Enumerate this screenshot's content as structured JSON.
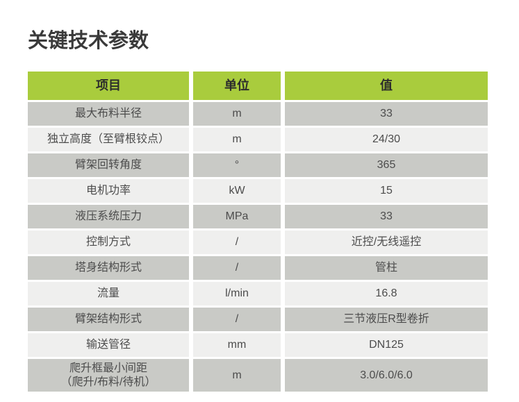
{
  "page": {
    "title": "关键技术参数"
  },
  "colors": {
    "header_bg": "#a9cc3d",
    "row_dark": "#c9cac6",
    "row_light": "#efefee",
    "title_text": "#3a3a3a",
    "cell_text": "#4c4c4c"
  },
  "table": {
    "headers": [
      "项目",
      "单位",
      "值"
    ],
    "rows": [
      {
        "item": "最大布料半径",
        "unit": "m",
        "value": "33"
      },
      {
        "item": "独立高度（至臂根铰点）",
        "unit": "m",
        "value": "24/30"
      },
      {
        "item": "臂架回转角度",
        "unit": "°",
        "value": "365"
      },
      {
        "item": "电机功率",
        "unit": "kW",
        "value": "15"
      },
      {
        "item": "液压系统压力",
        "unit": "MPa",
        "value": "33"
      },
      {
        "item": "控制方式",
        "unit": "/",
        "value": "近控/无线遥控"
      },
      {
        "item": "塔身结构形式",
        "unit": "/",
        "value": "管柱"
      },
      {
        "item": "流量",
        "unit": "l/min",
        "value": "16.8"
      },
      {
        "item": "臂架结构形式",
        "unit": "/",
        "value": "三节液压R型卷折"
      },
      {
        "item": "输送管径",
        "unit": "mm",
        "value": "DN125"
      },
      {
        "item": "爬升框最小间距\n（爬升/布料/待机）",
        "unit": "m",
        "value": "3.0/6.0/6.0"
      }
    ]
  }
}
